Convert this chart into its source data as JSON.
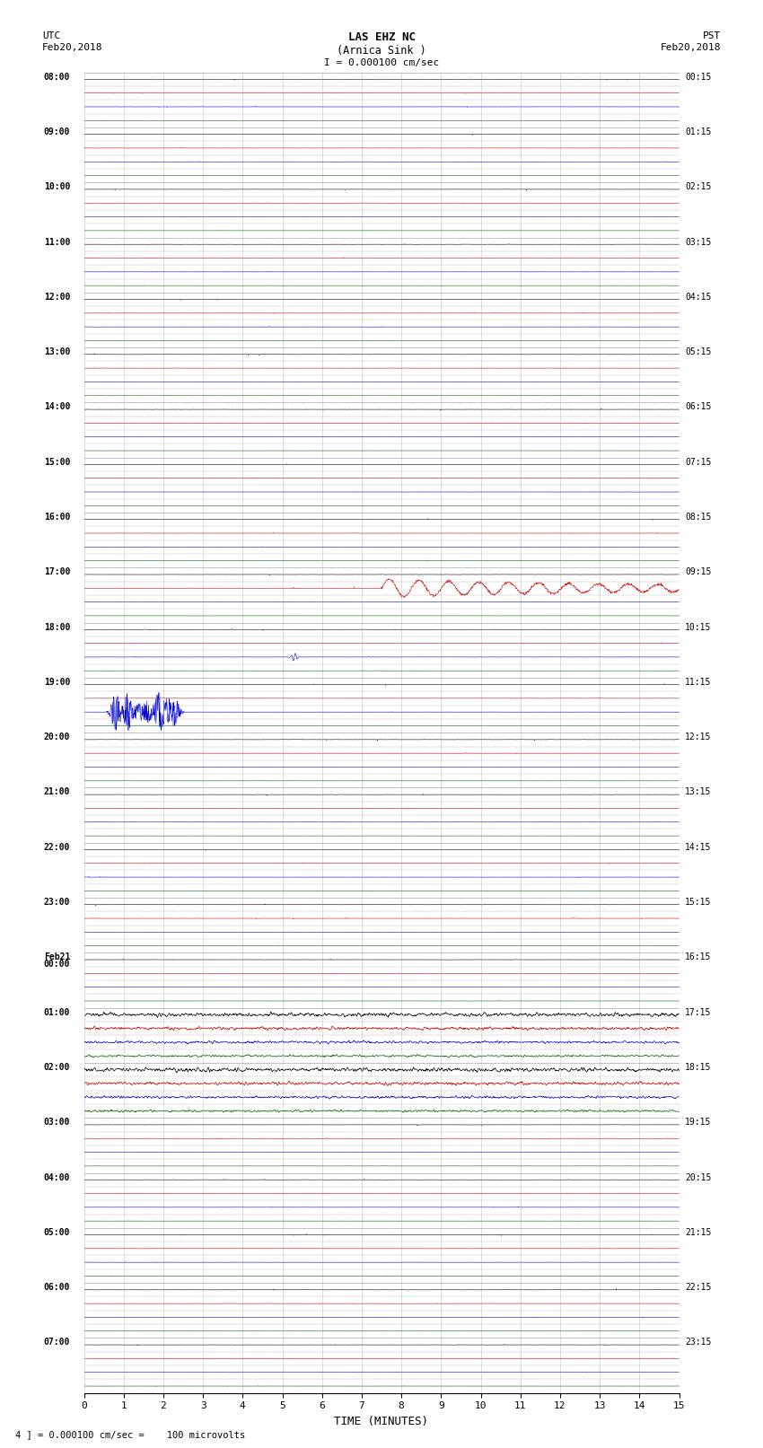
{
  "title_line1": "LAS EHZ NC",
  "title_line2": "(Arnica Sink )",
  "scale_label": "I = 0.000100 cm/sec",
  "left_label_top": "UTC",
  "left_label_date": "Feb20,2018",
  "right_label_top": "PST",
  "right_label_date": "Feb20,2018",
  "bottom_label": "TIME (MINUTES)",
  "footnote": "4 ] = 0.000100 cm/sec =    100 microvolts",
  "utc_labels": [
    "08:00",
    "09:00",
    "10:00",
    "11:00",
    "12:00",
    "13:00",
    "14:00",
    "15:00",
    "16:00",
    "17:00",
    "18:00",
    "19:00",
    "20:00",
    "21:00",
    "22:00",
    "23:00",
    "Feb21\n00:00",
    "01:00",
    "02:00",
    "03:00",
    "04:00",
    "05:00",
    "06:00",
    "07:00"
  ],
  "pst_labels": [
    "00:15",
    "01:15",
    "02:15",
    "03:15",
    "04:15",
    "05:15",
    "06:15",
    "07:15",
    "08:15",
    "09:15",
    "10:15",
    "11:15",
    "12:15",
    "13:15",
    "14:15",
    "15:15",
    "16:15",
    "17:15",
    "18:15",
    "19:15",
    "20:15",
    "21:15",
    "22:15",
    "23:15"
  ],
  "n_hours": 24,
  "traces_per_hour": 4,
  "x_min": 0,
  "x_max": 15,
  "x_ticks": [
    0,
    1,
    2,
    3,
    4,
    5,
    6,
    7,
    8,
    9,
    10,
    11,
    12,
    13,
    14,
    15
  ],
  "bg_color": "#ffffff",
  "trace_colors": [
    "#000000",
    "#cc0000",
    "#0000cc",
    "#006600"
  ],
  "grid_color": "#888888",
  "label_color": "#000000",
  "seed": 42
}
